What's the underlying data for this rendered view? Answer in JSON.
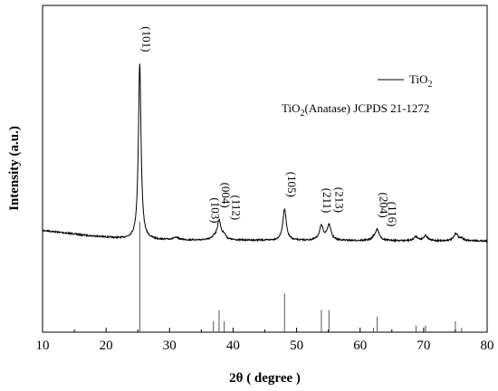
{
  "chart_data": {
    "type": "line",
    "xlabel": "2θ ( degree )",
    "ylabel": "Intensity (a.u.)",
    "xlim": [
      10,
      80
    ],
    "xticks": [
      "10",
      "20",
      "30",
      "40",
      "50",
      "60",
      "70",
      "80"
    ],
    "grid": false,
    "legend": {
      "placement": "top-right",
      "series_label": "TiO",
      "series_label_sub": "2",
      "reference_prefix": "TiO",
      "reference_sub": "2",
      "reference_suffix": "(Anatase) JCPDS 21-1272"
    },
    "series": [
      {
        "name": "TiO2",
        "baseline_points": [
          [
            10,
            0.06
          ],
          [
            11,
            0.057
          ],
          [
            12,
            0.053
          ],
          [
            13,
            0.049
          ],
          [
            14,
            0.045
          ],
          [
            15,
            0.041
          ],
          [
            16,
            0.037
          ],
          [
            17,
            0.033
          ],
          [
            18,
            0.03
          ],
          [
            19,
            0.027
          ],
          [
            20,
            0.024
          ],
          [
            21,
            0.021
          ],
          [
            22,
            0.018
          ],
          [
            23,
            0.016
          ],
          [
            24,
            0.015
          ],
          [
            25,
            0.015
          ],
          [
            26,
            0.013
          ],
          [
            28,
            0.01
          ],
          [
            30,
            0.009
          ],
          [
            32,
            0.008
          ],
          [
            35,
            0.008
          ],
          [
            40,
            0.008
          ],
          [
            45,
            0.007
          ],
          [
            50,
            0.006
          ],
          [
            55,
            0.006
          ],
          [
            60,
            0.005
          ],
          [
            65,
            0.005
          ],
          [
            70,
            0.004
          ],
          [
            75,
            0.004
          ],
          [
            80,
            0.004
          ]
        ],
        "peaks": [
          {
            "pos": 25.3,
            "height": 0.945,
            "width": 0.25
          },
          {
            "pos": 31.0,
            "height": 0.012,
            "width": 0.6
          },
          {
            "pos": 37.0,
            "height": 0.015,
            "width": 0.35
          },
          {
            "pos": 37.8,
            "height": 0.105,
            "width": 0.35
          },
          {
            "pos": 38.6,
            "height": 0.025,
            "width": 0.3
          },
          {
            "pos": 48.1,
            "height": 0.17,
            "width": 0.32
          },
          {
            "pos": 53.9,
            "height": 0.075,
            "width": 0.38
          },
          {
            "pos": 55.1,
            "height": 0.08,
            "width": 0.38
          },
          {
            "pos": 62.1,
            "height": 0.01,
            "width": 0.3
          },
          {
            "pos": 62.7,
            "height": 0.058,
            "width": 0.4
          },
          {
            "pos": 68.8,
            "height": 0.022,
            "width": 0.38
          },
          {
            "pos": 70.3,
            "height": 0.028,
            "width": 0.38
          },
          {
            "pos": 75.1,
            "height": 0.04,
            "width": 0.38
          },
          {
            "pos": 76.0,
            "height": 0.012,
            "width": 0.3
          }
        ]
      }
    ],
    "reference_lines": {
      "name": "TiO2 (Anatase) JCPDS 21-1272",
      "positions": [
        25.3,
        36.9,
        37.8,
        38.6,
        48.1,
        53.9,
        55.1,
        62.1,
        62.7,
        68.8,
        70.3,
        75.0,
        76.0
      ],
      "intensities": [
        100,
        10,
        20,
        10,
        35,
        20,
        20,
        4,
        14,
        6,
        6,
        10,
        4
      ]
    },
    "annotations": [
      {
        "text": "(101)",
        "x": 25.3
      },
      {
        "text": "(103)",
        "x": 36.9
      },
      {
        "text": "(004)",
        "x": 37.8
      },
      {
        "text": "(112)",
        "x": 38.6
      },
      {
        "text": "(105)",
        "x": 48.1
      },
      {
        "text": "(211)",
        "x": 53.9
      },
      {
        "text": "(213)",
        "x": 55.1
      },
      {
        "text": "(204)",
        "x": 62.7
      },
      {
        "text": "(116)",
        "x": 63.6
      }
    ]
  }
}
